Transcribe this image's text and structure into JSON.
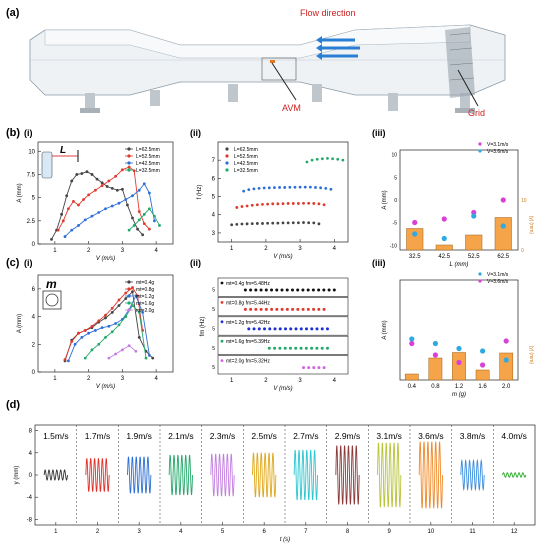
{
  "panel_labels": {
    "a": "(a)",
    "b": "(b)",
    "b_i": "(i)",
    "b_ii": "(ii)",
    "b_iii": "(iii)",
    "c": "(c)",
    "c_i": "(i)",
    "c_ii": "(ii)",
    "c_iii": "(iii)",
    "d": "(d)"
  },
  "schematic": {
    "flow_label": "Flow direction",
    "avm_label": "AVM",
    "grid_label": "Grid",
    "colors": {
      "flow": "#cc2222",
      "arrow": "#2a7fd4"
    }
  },
  "chart_data": [
    {
      "id": "b_i",
      "type": "line",
      "xlabel": "V (m/s)",
      "ylabel": "A (mm)",
      "xlim": [
        0.5,
        4.5
      ],
      "ylim": [
        0,
        11
      ],
      "xticks": [
        1,
        2,
        3,
        4
      ],
      "yticks": [
        0.0,
        2.5,
        5.0,
        7.5,
        10.0
      ],
      "legend_position": "top-right",
      "inset_label": "L",
      "series": [
        {
          "name": "L=62.5mm",
          "color": "#444444",
          "x": [
            0.9,
            1.05,
            1.2,
            1.35,
            1.5,
            1.65,
            1.8,
            1.95,
            2.1,
            2.25,
            2.4,
            2.55,
            2.7,
            2.85,
            3.0,
            3.15,
            3.3,
            3.45,
            3.6
          ],
          "y": [
            0.5,
            1.5,
            3.2,
            5.2,
            6.8,
            7.5,
            7.6,
            7.8,
            7.5,
            7.0,
            6.6,
            6.2,
            6.0,
            5.8,
            5.9,
            4.2,
            2.8,
            1.6,
            1.0
          ]
        },
        {
          "name": "L=52.5mm",
          "color": "#e03a2f",
          "x": [
            1.1,
            1.25,
            1.4,
            1.55,
            1.7,
            1.85,
            2.0,
            2.2,
            2.4,
            2.6,
            2.8,
            3.0,
            3.2,
            3.35,
            3.5,
            3.65,
            3.8
          ],
          "y": [
            1.5,
            2.5,
            3.8,
            4.6,
            4.2,
            4.8,
            5.3,
            5.8,
            6.3,
            6.8,
            7.3,
            8.0,
            8.3,
            7.9,
            3.5,
            2.2,
            1.6
          ]
        },
        {
          "name": "L=42.5mm",
          "color": "#2d6fd6",
          "x": [
            1.3,
            1.5,
            1.7,
            1.9,
            2.1,
            2.3,
            2.5,
            2.7,
            2.9,
            3.1,
            3.3,
            3.5,
            3.65,
            3.8,
            3.95
          ],
          "y": [
            0.8,
            1.5,
            2.0,
            2.6,
            3.0,
            3.4,
            3.8,
            4.1,
            4.4,
            4.8,
            5.2,
            5.8,
            6.5,
            5.5,
            2.5
          ]
        },
        {
          "name": "L=32.5mm",
          "color": "#25a86b",
          "x": [
            3.2,
            3.35,
            3.5,
            3.65,
            3.8,
            3.95,
            4.1
          ],
          "y": [
            1.5,
            2.0,
            2.6,
            3.2,
            3.8,
            3.0,
            2.0
          ]
        }
      ]
    },
    {
      "id": "b_ii",
      "type": "scatter",
      "xlabel": "V (m/s)",
      "ylabel": "f (Hz)",
      "xlim": [
        0.6,
        4.4
      ],
      "ylim": [
        2.5,
        8
      ],
      "xticks": [
        1,
        2,
        3,
        4
      ],
      "yticks": [
        3,
        4,
        5,
        6,
        7
      ],
      "legend_position": "top-left",
      "series": [
        {
          "name": "L=62.5mm",
          "color": "#444444",
          "x": [
            1.0,
            1.15,
            1.3,
            1.45,
            1.6,
            1.75,
            1.9,
            2.05,
            2.2,
            2.35,
            2.5,
            2.65,
            2.8,
            2.95,
            3.1,
            3.25,
            3.4,
            3.55
          ],
          "y": [
            3.45,
            3.47,
            3.49,
            3.5,
            3.51,
            3.52,
            3.52,
            3.53,
            3.54,
            3.54,
            3.55,
            3.55,
            3.56,
            3.56,
            3.57,
            3.56,
            3.55,
            3.5
          ]
        },
        {
          "name": "L=52.5mm",
          "color": "#e03a2f",
          "x": [
            1.15,
            1.3,
            1.45,
            1.6,
            1.75,
            1.9,
            2.05,
            2.2,
            2.35,
            2.5,
            2.65,
            2.8,
            2.95,
            3.1,
            3.25,
            3.4,
            3.55,
            3.7
          ],
          "y": [
            4.4,
            4.45,
            4.48,
            4.52,
            4.55,
            4.57,
            4.58,
            4.6,
            4.6,
            4.61,
            4.62,
            4.62,
            4.62,
            4.63,
            4.63,
            4.62,
            4.6,
            4.55
          ]
        },
        {
          "name": "L=42.5mm",
          "color": "#2d6fd6",
          "x": [
            1.35,
            1.5,
            1.65,
            1.8,
            1.95,
            2.1,
            2.25,
            2.4,
            2.55,
            2.7,
            2.85,
            3.0,
            3.15,
            3.3,
            3.45,
            3.6,
            3.75,
            3.9
          ],
          "y": [
            5.3,
            5.38,
            5.42,
            5.45,
            5.47,
            5.48,
            5.49,
            5.5,
            5.5,
            5.51,
            5.51,
            5.52,
            5.52,
            5.52,
            5.5,
            5.48,
            5.45,
            5.4
          ]
        },
        {
          "name": "L=32.5mm",
          "color": "#25a86b",
          "x": [
            3.2,
            3.35,
            3.5,
            3.65,
            3.8,
            3.95,
            4.1,
            4.25
          ],
          "y": [
            6.9,
            7.0,
            7.05,
            7.08,
            7.1,
            7.08,
            7.05,
            7.0
          ]
        }
      ]
    },
    {
      "id": "b_iii",
      "type": "bar",
      "xlabel": "L (mm)",
      "ylabel": "A (mm)",
      "ylabel_right": "|y| (mm)",
      "categories": [
        "32.5",
        "42.5",
        "52.5",
        "62.5"
      ],
      "bar_values": [
        4.3,
        1.0,
        3.0,
        6.5
      ],
      "bar_color": "#f5a44a",
      "ylim_right": [
        0,
        20
      ],
      "yticks": [
        -10,
        -5,
        0,
        5,
        10
      ],
      "yticks_right": [
        0,
        10
      ],
      "ylim": [
        -11,
        11
      ],
      "legend_position": "top-right",
      "series": [
        {
          "name": "V=3.1m/s",
          "color": "#d93fd9",
          "values": [
            5.5,
            6.2,
            7.5,
            10.0
          ]
        },
        {
          "name": "V=3.6m/s",
          "color": "#2eaae0",
          "values": [
            3.2,
            2.3,
            6.8,
            4.8
          ]
        }
      ]
    },
    {
      "id": "c_i",
      "type": "line",
      "xlabel": "V (m/s)",
      "ylabel": "A (mm)",
      "xlim": [
        0.5,
        4.5
      ],
      "ylim": [
        0,
        7
      ],
      "xticks": [
        1,
        2,
        3,
        4
      ],
      "yticks": [
        0,
        2,
        4,
        6
      ],
      "legend_position": "top-right",
      "inset_label": "m",
      "series": [
        {
          "name": "mt=0.4g",
          "color": "#444444",
          "x": [
            1.3,
            1.5,
            1.7,
            1.9,
            2.1,
            2.3,
            2.5,
            2.7,
            2.9,
            3.1,
            3.3,
            3.5,
            3.7,
            3.9
          ],
          "y": [
            0.8,
            2.3,
            2.8,
            3.0,
            3.2,
            3.6,
            3.9,
            4.3,
            4.8,
            5.3,
            5.8,
            2.5,
            1.5,
            1.0
          ]
        },
        {
          "name": "mt=0.8g",
          "color": "#e03a2f",
          "x": [
            1.3,
            1.5,
            1.7,
            1.9,
            2.1,
            2.3,
            2.5,
            2.7,
            2.9,
            3.1,
            3.3,
            3.45,
            3.6
          ],
          "y": [
            0.9,
            2.2,
            2.8,
            3.0,
            3.3,
            3.7,
            4.1,
            4.6,
            5.2,
            5.7,
            6.1,
            5.5,
            3.0
          ]
        },
        {
          "name": "mt=1.2g",
          "color": "#2d6fd6",
          "x": [
            1.4,
            1.6,
            1.8,
            2.0,
            2.2,
            2.4,
            2.6,
            2.8,
            3.0,
            3.2,
            3.4,
            3.6,
            3.8
          ],
          "y": [
            0.8,
            2.0,
            2.5,
            2.8,
            3.0,
            3.2,
            3.3,
            3.5,
            3.8,
            4.5,
            5.5,
            4.3,
            1.2
          ]
        },
        {
          "name": "mt=1.6g",
          "color": "#25a86b",
          "x": [
            1.9,
            2.1,
            2.3,
            2.5,
            2.7,
            2.9,
            3.1,
            3.3,
            3.5,
            3.7
          ],
          "y": [
            1.0,
            1.6,
            2.0,
            2.5,
            2.9,
            3.4,
            4.0,
            4.8,
            4.3,
            1.0
          ]
        },
        {
          "name": "mt=2.0g",
          "color": "#c47ee0",
          "x": [
            2.6,
            2.8,
            3.0,
            3.2,
            3.4
          ],
          "y": [
            1.0,
            1.3,
            1.6,
            1.9,
            1.5
          ]
        }
      ]
    },
    {
      "id": "c_ii",
      "type": "scatter",
      "xlabel": "V (m/s)",
      "ylabel": "fm (Hz)",
      "xlim": [
        0.6,
        4.4
      ],
      "xticks": [
        1,
        2,
        3,
        4
      ],
      "ytick_label": "5",
      "series": [
        {
          "name": "mt=0.4g fm=5.48Hz",
          "color": "#111111",
          "x_start": 1.4,
          "x_end": 4.0,
          "count": 18
        },
        {
          "name": "mt=0.8g fm=5.44Hz",
          "color": "#e03a2f",
          "x_start": 1.4,
          "x_end": 3.7,
          "count": 16
        },
        {
          "name": "mt=1.2g fm=5.42Hz",
          "color": "#1a2fd6",
          "x_start": 1.5,
          "x_end": 3.8,
          "count": 16
        },
        {
          "name": "mt=1.6g fm=5.39Hz",
          "color": "#25a86b",
          "x_start": 2.1,
          "x_end": 3.8,
          "count": 12
        },
        {
          "name": "mt=2.0g fm=5.32Hz",
          "color": "#d066e0",
          "x_start": 3.1,
          "x_end": 3.7,
          "count": 5
        }
      ]
    },
    {
      "id": "c_iii",
      "type": "bar",
      "xlabel": "m (g)",
      "ylabel": "A (mm)",
      "ylabel_right": "|y| (mm)",
      "categories": [
        "0.4",
        "0.8",
        "1.2",
        "1.6",
        "2.0"
      ],
      "bar_values": [
        1.2,
        4.4,
        5.5,
        2.0,
        5.4
      ],
      "bar_color": "#f5a44a",
      "ylim_right": [
        0,
        20
      ],
      "legend_position": "top-right",
      "series": [
        {
          "name": "V=3.1m/s",
          "color": "#2eaae0",
          "values": [
            8.2,
            7.3,
            6.3,
            5.8,
            4.0
          ]
        },
        {
          "name": "V=3.6m/s",
          "color": "#d93fd9",
          "values": [
            7.3,
            5.0,
            3.5,
            3.0,
            7.8
          ]
        }
      ]
    },
    {
      "id": "d",
      "type": "line",
      "xlabel": "t (s)",
      "ylabel": "y (mm)",
      "xlim": [
        0.5,
        12.5
      ],
      "ylim": [
        -9,
        9
      ],
      "xticks": [
        1,
        2,
        3,
        4,
        5,
        6,
        7,
        8,
        9,
        10,
        11,
        12
      ],
      "yticks": [
        -8,
        -4,
        0,
        4,
        8
      ],
      "segments": [
        {
          "label": "1.5m/s",
          "amp": 0.9,
          "color": "#333333"
        },
        {
          "label": "1.7m/s",
          "amp": 3.0,
          "color": "#e0302a"
        },
        {
          "label": "1.9m/s",
          "amp": 3.3,
          "color": "#2d6fd6"
        },
        {
          "label": "2.1m/s",
          "amp": 3.6,
          "color": "#25a86b"
        },
        {
          "label": "2.3m/s",
          "amp": 3.8,
          "color": "#c47ee0"
        },
        {
          "label": "2.5m/s",
          "amp": 4.0,
          "color": "#e0a81a"
        },
        {
          "label": "2.7m/s",
          "amp": 4.5,
          "color": "#2ec6d0"
        },
        {
          "label": "2.9m/s",
          "amp": 5.3,
          "color": "#8b3a3a"
        },
        {
          "label": "3.1m/s",
          "amp": 5.8,
          "color": "#b8c43a"
        },
        {
          "label": "3.6m/s",
          "amp": 6.0,
          "color": "#f08a2a"
        },
        {
          "label": "3.8m/s",
          "amp": 2.6,
          "color": "#3a8fe0"
        },
        {
          "label": "4.0m/s",
          "amp": 0.4,
          "color": "#2aaa2a"
        }
      ]
    }
  ]
}
